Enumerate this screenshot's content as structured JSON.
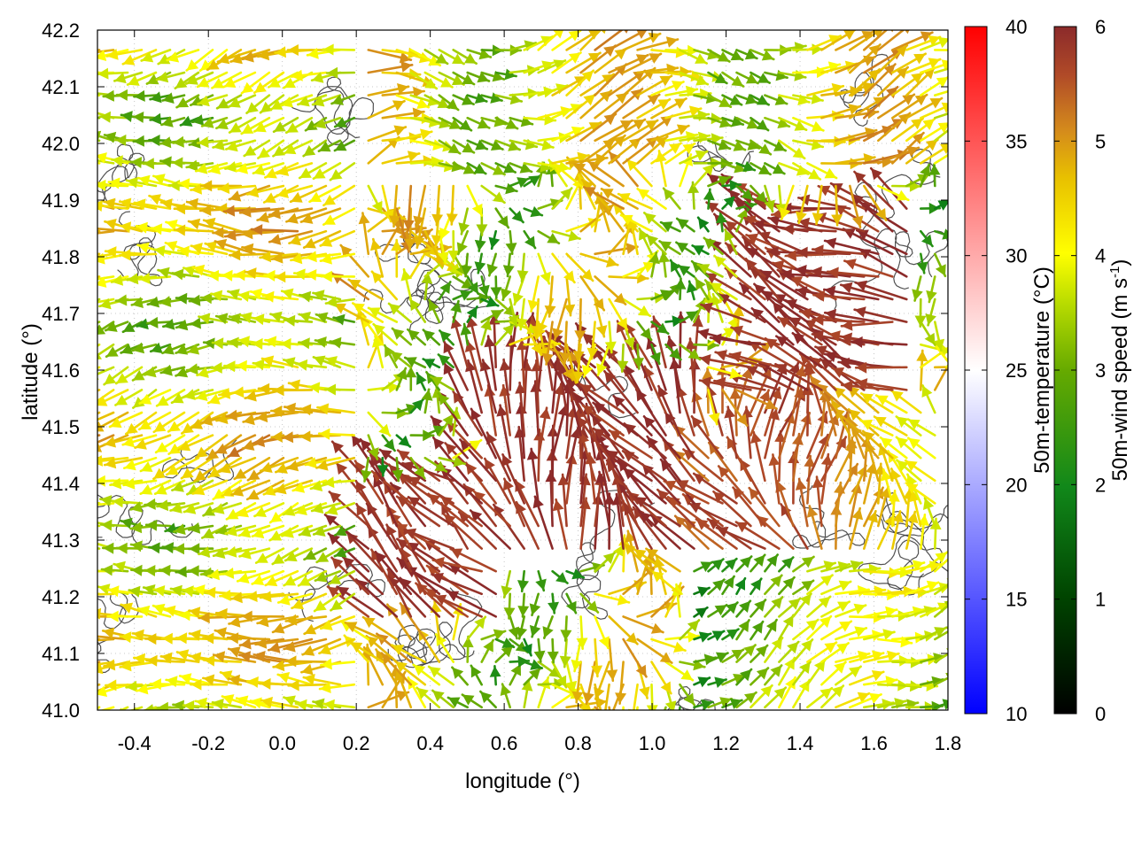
{
  "chart_data": {
    "type": "vector-field",
    "xlabel": "longitude (°)",
    "ylabel": "latitude (°)",
    "xlim": [
      -0.5,
      1.8
    ],
    "ylim": [
      41.0,
      42.2
    ],
    "xticks": [
      "-0.4",
      "-0.2",
      "0.0",
      "0.2",
      "0.4",
      "0.6",
      "0.8",
      "1.0",
      "1.2",
      "1.4",
      "1.6",
      "1.8"
    ],
    "yticks": [
      "41.0",
      "41.1",
      "41.2",
      "41.3",
      "41.4",
      "41.5",
      "41.6",
      "41.7",
      "41.8",
      "41.9",
      "42.0",
      "42.1",
      "42.2"
    ],
    "grid": true,
    "contours": "terrain elevation (dark grey lines)",
    "arrows": {
      "variable": "50m-wind",
      "speed_range_m_s": [
        0,
        6
      ],
      "spacing_deg": [
        0.0383,
        0.04
      ],
      "regions": [
        {
          "area": "west (lon < 0.2)",
          "direction": "westward / west-northwest",
          "speed_m_s": "2.5-4.5"
        },
        {
          "area": "centre (lon 0.5-1.1, lat 41.3-41.6)",
          "direction": "north-northwest",
          "speed_m_s": "5.5-6"
        },
        {
          "area": "south-west strip (lon 0.2-0.6, lat 41.2-41.4)",
          "direction": "north-west",
          "speed_m_s": "5.5-6"
        },
        {
          "area": "east (lon 1.3-1.6, lat 41.6-41.9)",
          "direction": "west-northwest",
          "speed_m_s": "5.5-6"
        },
        {
          "area": "south-east (lon > 1.1, lat < 41.25)",
          "direction": "north-east / east",
          "speed_m_s": "1.5-3.5"
        },
        {
          "area": "north (lat > 41.95)",
          "direction": "east",
          "speed_m_s": "2-5"
        }
      ]
    },
    "colorbars": [
      {
        "label": "50m-temperature (°C)",
        "range": [
          10,
          40
        ],
        "ticks": [
          "10",
          "15",
          "20",
          "25",
          "30",
          "35",
          "40"
        ],
        "stops": [
          "#0000ff",
          "#ffffff",
          "#ff0000"
        ]
      },
      {
        "label_main": "50m-wind speed (m s",
        "label_sup": "-1",
        "label_end": ")",
        "range": [
          0,
          6
        ],
        "ticks": [
          "0",
          "1",
          "2",
          "3",
          "4",
          "5",
          "6"
        ],
        "stops": [
          "#000000",
          "#005500",
          "#11881a",
          "#66aa00",
          "#bbdd00",
          "#ffff00",
          "#e8c000",
          "#d48a1c",
          "#b04a28",
          "#8b2a2a"
        ]
      }
    ]
  }
}
